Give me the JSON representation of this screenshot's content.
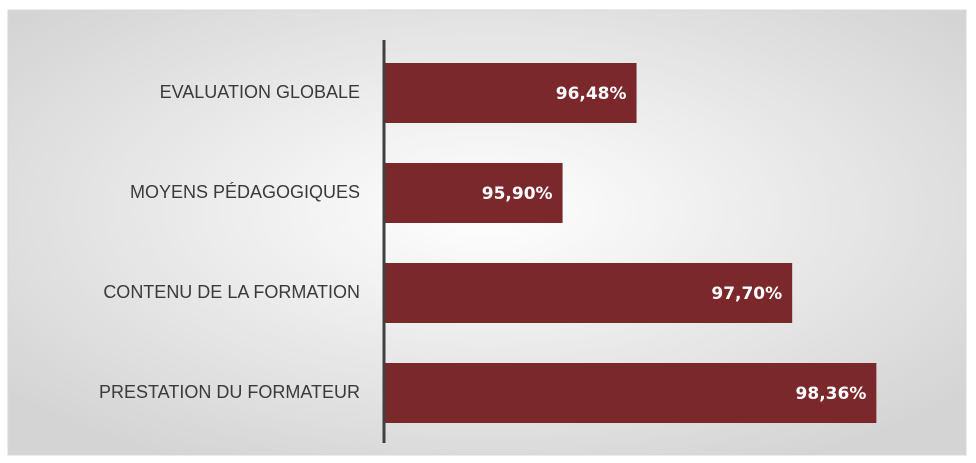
{
  "chart_data": {
    "type": "bar",
    "orientation": "horizontal",
    "categories": [
      "EVALUATION GLOBALE",
      "MOYENS PÉDAGOGIQUES",
      "CONTENU DE LA FORMATION",
      "PRESTATION DU FORMATEUR"
    ],
    "values": [
      96.48,
      95.9,
      97.7,
      98.36
    ],
    "value_labels": [
      "96,48%",
      "95,90%",
      "97,70%",
      "98,36%"
    ],
    "color": "#7a282c",
    "xlim": [
      94.5,
      99
    ]
  }
}
